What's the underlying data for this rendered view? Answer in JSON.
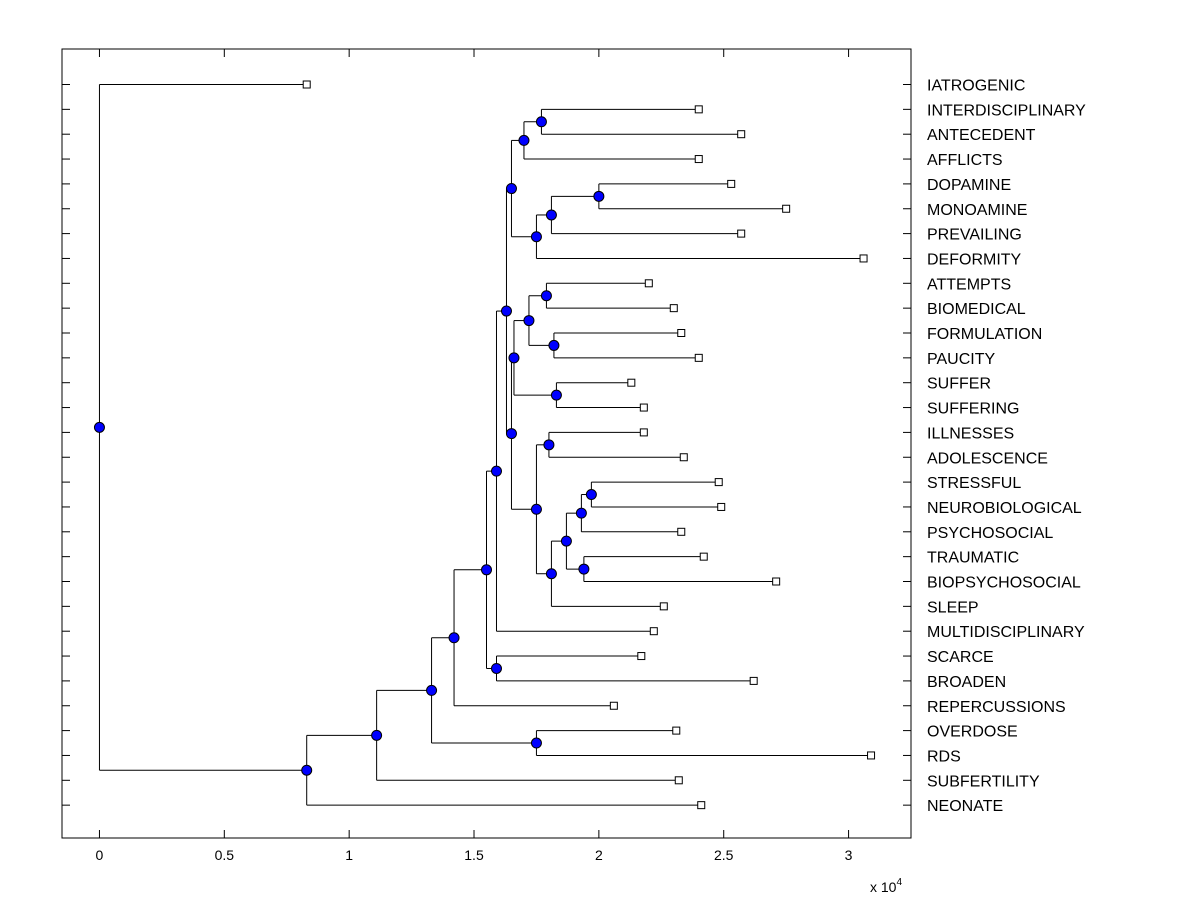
{
  "chart_data": {
    "type": "dendrogram",
    "orientation": "horizontal",
    "x_multiplier": "x 10",
    "x_multiplier_exponent": "4",
    "xlim": [
      -0.15,
      3.25
    ],
    "x_ticks": [
      0,
      0.5,
      1,
      1.5,
      2,
      2.5,
      3
    ],
    "x_tick_labels": [
      "0",
      "0.5",
      "1",
      "1.5",
      "2",
      "2.5",
      "3"
    ],
    "colors": {
      "node_fill": "#0000ff",
      "leaf_fill": "#ffffff",
      "line": "#000000"
    },
    "leaves": [
      {
        "label": "IATROGENIC",
        "x": 0.83
      },
      {
        "label": "INTERDISCIPLINARY",
        "x": 2.4
      },
      {
        "label": "ANTECEDENT",
        "x": 2.57
      },
      {
        "label": "AFFLICTS",
        "x": 2.4
      },
      {
        "label": "DOPAMINE",
        "x": 2.53
      },
      {
        "label": "MONOAMINE",
        "x": 2.75
      },
      {
        "label": "PREVAILING",
        "x": 2.57
      },
      {
        "label": "DEFORMITY",
        "x": 3.06
      },
      {
        "label": "ATTEMPTS",
        "x": 2.2
      },
      {
        "label": "BIOMEDICAL",
        "x": 2.3
      },
      {
        "label": "FORMULATION",
        "x": 2.33
      },
      {
        "label": "PAUCITY",
        "x": 2.4
      },
      {
        "label": "SUFFER",
        "x": 2.13
      },
      {
        "label": "SUFFERING",
        "x": 2.18
      },
      {
        "label": "ILLNESSES",
        "x": 2.18
      },
      {
        "label": "ADOLESCENCE",
        "x": 2.34
      },
      {
        "label": "STRESSFUL",
        "x": 2.48
      },
      {
        "label": "NEUROBIOLOGICAL",
        "x": 2.49
      },
      {
        "label": "PSYCHOSOCIAL",
        "x": 2.33
      },
      {
        "label": "TRAUMATIC",
        "x": 2.42
      },
      {
        "label": "BIOPSYCHOSOCIAL",
        "x": 2.71
      },
      {
        "label": "SLEEP",
        "x": 2.26
      },
      {
        "label": "MULTIDISCIPLINARY",
        "x": 2.22
      },
      {
        "label": "SCARCE",
        "x": 2.17
      },
      {
        "label": "BROADEN",
        "x": 2.62
      },
      {
        "label": "REPERCUSSIONS",
        "x": 2.06
      },
      {
        "label": "OVERDOSE",
        "x": 2.31
      },
      {
        "label": "RDS",
        "x": 3.09
      },
      {
        "label": "SUBFERTILITY",
        "x": 2.32
      },
      {
        "label": "NEONATE",
        "x": 2.41
      }
    ],
    "nodes": [
      {
        "id": "n1",
        "x": 1.77,
        "children": [
          "L1",
          "L2"
        ]
      },
      {
        "id": "n2",
        "x": 1.7,
        "children": [
          "n1",
          "L3"
        ]
      },
      {
        "id": "n3",
        "x": 2.0,
        "children": [
          "L4",
          "L5"
        ]
      },
      {
        "id": "n4",
        "x": 1.81,
        "children": [
          "n3",
          "L6"
        ]
      },
      {
        "id": "n5",
        "x": 1.75,
        "children": [
          "n4",
          "L7"
        ]
      },
      {
        "id": "n6",
        "x": 1.65,
        "children": [
          "n2",
          "n5"
        ]
      },
      {
        "id": "n7",
        "x": 1.79,
        "children": [
          "L8",
          "L9"
        ]
      },
      {
        "id": "n8",
        "x": 1.82,
        "children": [
          "L10",
          "L11"
        ]
      },
      {
        "id": "n9",
        "x": 1.72,
        "children": [
          "n7",
          "n8"
        ]
      },
      {
        "id": "n10",
        "x": 1.83,
        "children": [
          "L12",
          "L13"
        ]
      },
      {
        "id": "n11",
        "x": 1.66,
        "children": [
          "n9",
          "n10"
        ]
      },
      {
        "id": "n12",
        "x": 1.8,
        "children": [
          "L14",
          "L15"
        ]
      },
      {
        "id": "n13",
        "x": 1.97,
        "children": [
          "L16",
          "L17"
        ]
      },
      {
        "id": "n14",
        "x": 1.93,
        "children": [
          "n13",
          "L18"
        ]
      },
      {
        "id": "n15",
        "x": 1.94,
        "children": [
          "L19",
          "L20"
        ]
      },
      {
        "id": "n16",
        "x": 1.87,
        "children": [
          "n14",
          "n15"
        ]
      },
      {
        "id": "n17",
        "x": 1.81,
        "children": [
          "n16",
          "L21"
        ]
      },
      {
        "id": "n18",
        "x": 1.75,
        "children": [
          "n12",
          "n17"
        ]
      },
      {
        "id": "n19",
        "x": 1.65,
        "children": [
          "n11",
          "n18"
        ]
      },
      {
        "id": "n20",
        "x": 1.63,
        "children": [
          "n6",
          "n19"
        ]
      },
      {
        "id": "n21",
        "x": 1.59,
        "children": [
          "n20",
          "L22"
        ]
      },
      {
        "id": "n22",
        "x": 1.59,
        "children": [
          "L23",
          "L24"
        ]
      },
      {
        "id": "n23",
        "x": 1.55,
        "children": [
          "n21",
          "n22"
        ]
      },
      {
        "id": "n24",
        "x": 1.42,
        "children": [
          "n23",
          "L25"
        ]
      },
      {
        "id": "n25",
        "x": 1.75,
        "children": [
          "L26",
          "L27"
        ]
      },
      {
        "id": "n26",
        "x": 1.33,
        "children": [
          "n24",
          "n25"
        ]
      },
      {
        "id": "n27",
        "x": 1.11,
        "children": [
          "n26",
          "L28"
        ]
      },
      {
        "id": "n28",
        "x": 0.83,
        "children": [
          "n27",
          "L29"
        ]
      },
      {
        "id": "n29",
        "x": 0.0,
        "children": [
          "L0",
          "n28"
        ]
      }
    ]
  }
}
